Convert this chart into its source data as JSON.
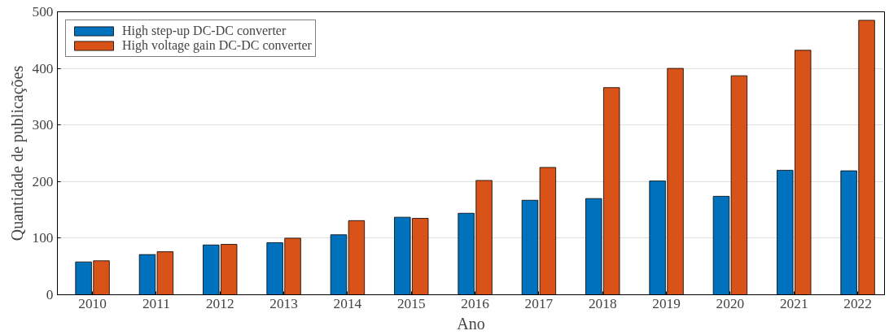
{
  "chart_data": {
    "type": "bar",
    "xlabel": "Ano",
    "ylabel": "Quantidade de publicações",
    "categories": [
      "2010",
      "2011",
      "2012",
      "2013",
      "2014",
      "2015",
      "2016",
      "2017",
      "2018",
      "2019",
      "2020",
      "2021",
      "2022"
    ],
    "series": [
      {
        "name": "High step-up DC-DC converter",
        "color": "#0072bd",
        "values": [
          58,
          71,
          88,
          92,
          106,
          137,
          144,
          167,
          170,
          201,
          174,
          220,
          219
        ]
      },
      {
        "name": "High voltage gain DC-DC converter",
        "color": "#d95319",
        "values": [
          60,
          76,
          89,
          100,
          131,
          135,
          202,
          225,
          366,
          400,
          387,
          432,
          485
        ]
      }
    ],
    "ylim": [
      0,
      500
    ],
    "yticks": [
      0,
      100,
      200,
      300,
      400,
      500
    ],
    "grid": "y",
    "legend": "top left"
  }
}
